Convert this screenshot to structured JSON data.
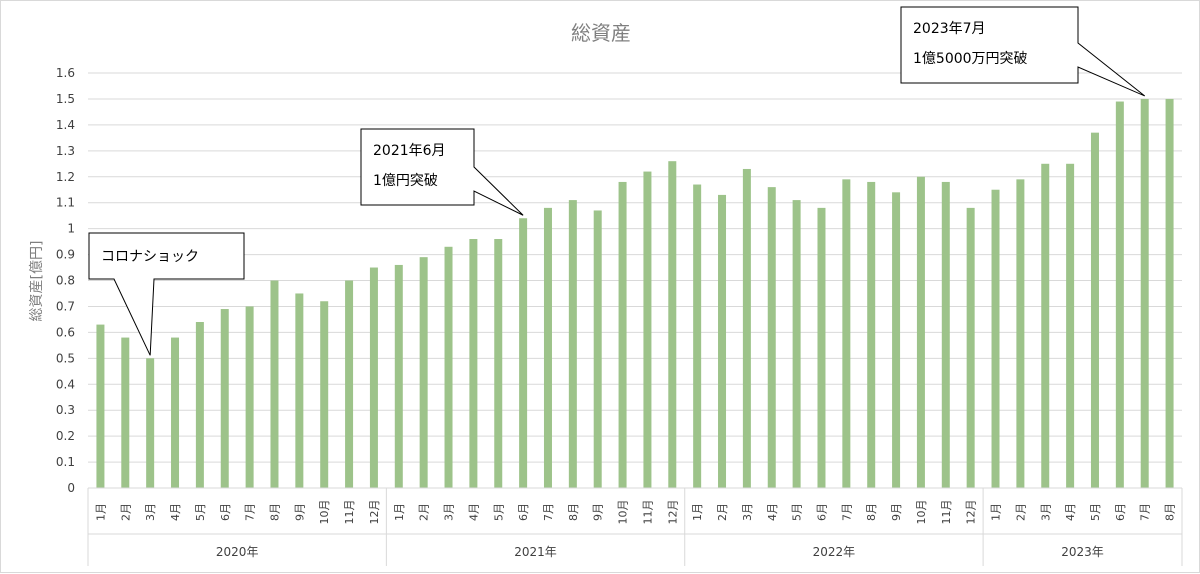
{
  "chart_data": {
    "type": "bar",
    "title": "総資産",
    "ylabel": "総資産[億円]",
    "xlabel": "",
    "ylim": [
      0,
      1.6
    ],
    "yticks": [
      0,
      0.1,
      0.2,
      0.3,
      0.4,
      0.5,
      0.6,
      0.7,
      0.8,
      0.9,
      1,
      1.1,
      1.2,
      1.3,
      1.4,
      1.5,
      1.6
    ],
    "grid": true,
    "bar_color": "#9dc38a",
    "groups": [
      {
        "label": "2020年",
        "count": 12
      },
      {
        "label": "2021年",
        "count": 12
      },
      {
        "label": "2022年",
        "count": 12
      },
      {
        "label": "2023年",
        "count": 8
      }
    ],
    "categories": [
      "1月",
      "2月",
      "3月",
      "4月",
      "5月",
      "6月",
      "7月",
      "8月",
      "9月",
      "10月",
      "11月",
      "12月",
      "1月",
      "2月",
      "3月",
      "4月",
      "5月",
      "6月",
      "7月",
      "8月",
      "9月",
      "10月",
      "11月",
      "12月",
      "1月",
      "2月",
      "3月",
      "4月",
      "5月",
      "6月",
      "7月",
      "8月",
      "9月",
      "10月",
      "11月",
      "12月",
      "1月",
      "2月",
      "3月",
      "4月",
      "5月",
      "6月",
      "7月",
      "8月"
    ],
    "values": [
      0.63,
      0.58,
      0.5,
      0.58,
      0.64,
      0.69,
      0.7,
      0.8,
      0.75,
      0.72,
      0.8,
      0.85,
      0.86,
      0.89,
      0.93,
      0.96,
      0.96,
      1.04,
      1.08,
      1.11,
      1.07,
      1.18,
      1.22,
      1.26,
      1.17,
      1.13,
      1.23,
      1.16,
      1.11,
      1.08,
      1.19,
      1.18,
      1.14,
      1.2,
      1.18,
      1.08,
      1.15,
      1.19,
      1.25,
      1.25,
      1.37,
      1.49,
      1.5,
      1.5
    ],
    "annotations": [
      {
        "lines": [
          "コロナショック"
        ],
        "target_index": 2
      },
      {
        "lines": [
          "2021年6月",
          "1億円突破"
        ],
        "target_index": 17
      },
      {
        "lines": [
          "2023年7月",
          "1億5000万円突破"
        ],
        "target_index": 42
      }
    ]
  }
}
